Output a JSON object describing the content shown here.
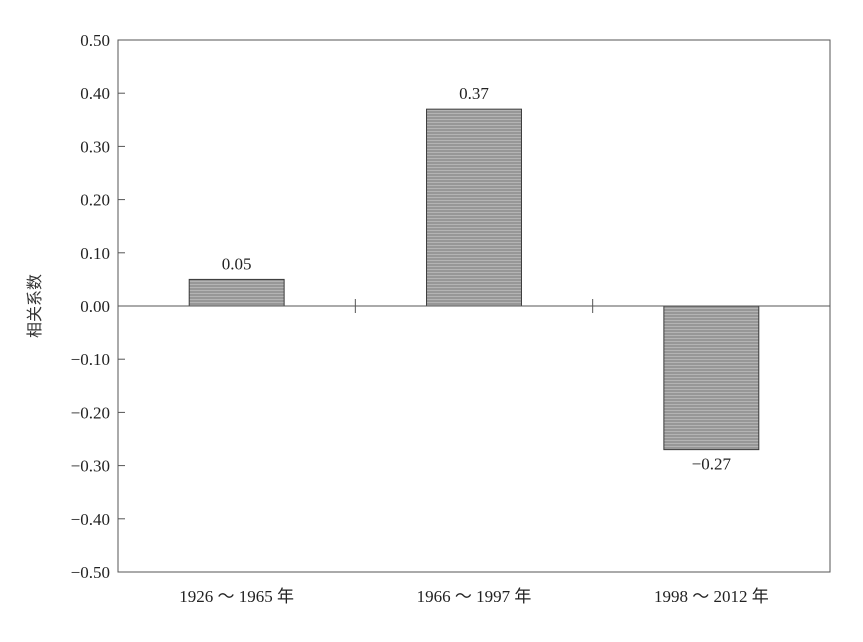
{
  "chart_data": {
    "type": "bar",
    "title": "",
    "xlabel": "",
    "ylabel": "相关系数",
    "categories": [
      "1926 ～ 1965 年",
      "1966 ～ 1997 年",
      "1998 ～ 2012 年"
    ],
    "values": [
      0.05,
      0.37,
      -0.27
    ],
    "value_labels": [
      "0.05",
      "0.37",
      "−0.27"
    ],
    "ylim": [
      -0.5,
      0.5
    ],
    "yticks": [
      0.5,
      0.4,
      0.3,
      0.2,
      0.1,
      0.0,
      -0.1,
      -0.2,
      -0.3,
      -0.4,
      -0.5
    ],
    "ytick_labels": [
      "0.50",
      "0.40",
      "0.30",
      "0.20",
      "0.10",
      "0.00",
      "−0.10",
      "−0.20",
      "−0.30",
      "−0.40",
      "−0.50"
    ],
    "grid": false,
    "legend": "none",
    "bar_color": "#a3a3a3",
    "bar_outline_color": "#3a3a3a",
    "axis_color": "#555555"
  }
}
